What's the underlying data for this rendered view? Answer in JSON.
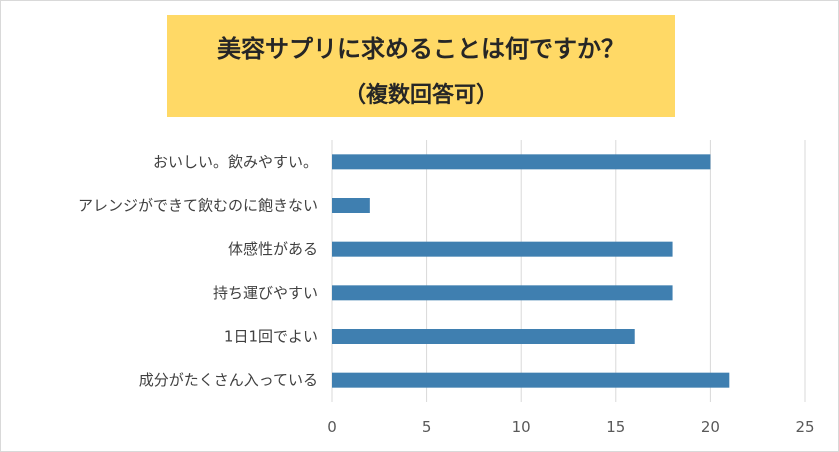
{
  "title_line1": "美容サプリに求めることは何ですか？",
  "title_line2": "（複数回答可）",
  "colors": {
    "bar": "#3f7fb0",
    "title_bg": "#ffd966",
    "grid": "#d9d9d9"
  },
  "chart_data": {
    "type": "bar",
    "orientation": "horizontal",
    "categories": [
      "おいしい。飲みやすい。",
      "アレンジができて飲むのに飽きない",
      "体感性がある",
      "持ち運びやすい",
      "1日1回でよい",
      "成分がたくさん入っている"
    ],
    "values": [
      20,
      2,
      18,
      18,
      16,
      21
    ],
    "xlim": [
      0,
      25
    ],
    "xticks": [
      0,
      5,
      10,
      15,
      20,
      25
    ],
    "grid": true,
    "legend": "none"
  }
}
